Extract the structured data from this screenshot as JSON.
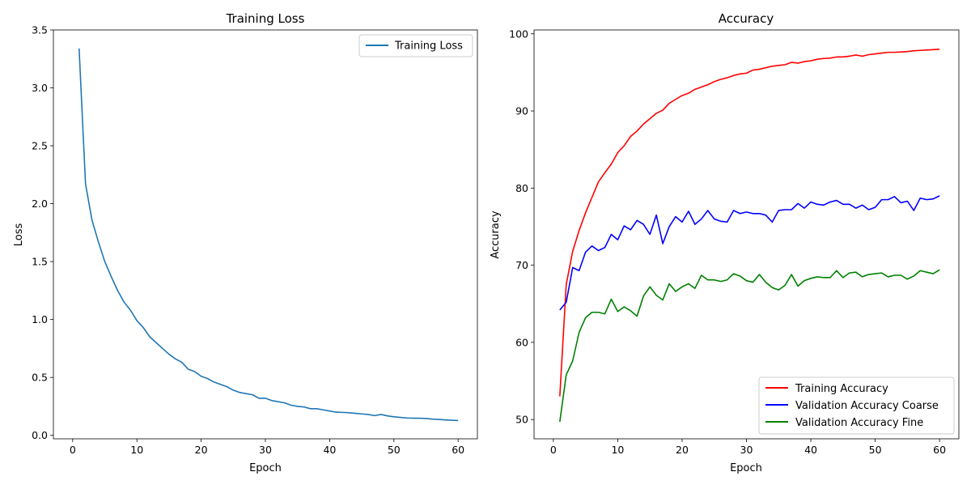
{
  "chart_data": [
    {
      "type": "line",
      "title": "Training Loss",
      "xlabel": "Epoch",
      "ylabel": "Loss",
      "xlim": [
        -3,
        63
      ],
      "ylim": [
        -0.03,
        3.5
      ],
      "xticks": [
        0,
        10,
        20,
        30,
        40,
        50,
        60
      ],
      "yticks": [
        0.0,
        0.5,
        1.0,
        1.5,
        2.0,
        2.5,
        3.0,
        3.5
      ],
      "ytick_decimals": 1,
      "grid": false,
      "legend_position": "upper right",
      "x": [
        1,
        2,
        3,
        4,
        5,
        6,
        7,
        8,
        9,
        10,
        11,
        12,
        13,
        14,
        15,
        16,
        17,
        18,
        19,
        20,
        21,
        22,
        23,
        24,
        25,
        26,
        27,
        28,
        29,
        30,
        31,
        32,
        33,
        34,
        35,
        36,
        37,
        38,
        39,
        40,
        41,
        42,
        43,
        44,
        45,
        46,
        47,
        48,
        49,
        50,
        51,
        52,
        53,
        54,
        55,
        56,
        57,
        58,
        59,
        60
      ],
      "series": [
        {
          "name": "Training Loss",
          "color": "#1f77b4",
          "values": [
            3.34,
            2.17,
            1.86,
            1.67,
            1.5,
            1.37,
            1.25,
            1.15,
            1.08,
            0.99,
            0.93,
            0.85,
            0.8,
            0.75,
            0.7,
            0.66,
            0.63,
            0.57,
            0.55,
            0.51,
            0.49,
            0.46,
            0.44,
            0.42,
            0.39,
            0.37,
            0.36,
            0.35,
            0.32,
            0.32,
            0.3,
            0.29,
            0.28,
            0.26,
            0.25,
            0.245,
            0.23,
            0.23,
            0.22,
            0.21,
            0.2,
            0.198,
            0.195,
            0.19,
            0.185,
            0.18,
            0.17,
            0.18,
            0.168,
            0.16,
            0.155,
            0.15,
            0.148,
            0.148,
            0.145,
            0.14,
            0.137,
            0.133,
            0.13,
            0.128
          ]
        }
      ]
    },
    {
      "type": "line",
      "title": "Accuracy",
      "xlabel": "Epoch",
      "ylabel": "Accuracy",
      "xlim": [
        -3,
        63
      ],
      "ylim": [
        47.5,
        100.5
      ],
      "xticks": [
        0,
        10,
        20,
        30,
        40,
        50,
        60
      ],
      "yticks": [
        50,
        60,
        70,
        80,
        90,
        100
      ],
      "ytick_decimals": 0,
      "grid": false,
      "legend_position": "lower right",
      "x": [
        1,
        2,
        3,
        4,
        5,
        6,
        7,
        8,
        9,
        10,
        11,
        12,
        13,
        14,
        15,
        16,
        17,
        18,
        19,
        20,
        21,
        22,
        23,
        24,
        25,
        26,
        27,
        28,
        29,
        30,
        31,
        32,
        33,
        34,
        35,
        36,
        37,
        38,
        39,
        40,
        41,
        42,
        43,
        44,
        45,
        46,
        47,
        48,
        49,
        50,
        51,
        52,
        53,
        54,
        55,
        56,
        57,
        58,
        59,
        60
      ],
      "series": [
        {
          "name": "Training Accuracy",
          "color": "#ff0000",
          "values": [
            53.0,
            67.5,
            71.8,
            74.5,
            76.8,
            78.8,
            80.8,
            82.0,
            83.1,
            84.6,
            85.5,
            86.7,
            87.4,
            88.3,
            89.0,
            89.7,
            90.1,
            91.0,
            91.5,
            92.0,
            92.3,
            92.8,
            93.1,
            93.4,
            93.8,
            94.1,
            94.3,
            94.6,
            94.8,
            94.9,
            95.3,
            95.4,
            95.6,
            95.8,
            95.9,
            96.0,
            96.3,
            96.2,
            96.4,
            96.5,
            96.7,
            96.8,
            96.85,
            97.0,
            97.0,
            97.1,
            97.25,
            97.1,
            97.3,
            97.4,
            97.5,
            97.6,
            97.6,
            97.65,
            97.7,
            97.8,
            97.85,
            97.9,
            97.95,
            98.0
          ]
        },
        {
          "name": "Validation Accuracy Coarse",
          "color": "#0000ff",
          "values": [
            64.2,
            65.2,
            69.7,
            69.3,
            71.7,
            72.5,
            71.9,
            72.3,
            74.0,
            73.3,
            75.1,
            74.6,
            75.8,
            75.3,
            74.0,
            76.5,
            72.8,
            75.0,
            76.3,
            75.6,
            77.0,
            75.3,
            76.0,
            77.1,
            76.0,
            75.7,
            75.6,
            77.1,
            76.7,
            76.9,
            76.7,
            76.7,
            76.5,
            75.6,
            77.1,
            77.2,
            77.2,
            78.0,
            77.4,
            78.2,
            77.9,
            77.8,
            78.2,
            78.4,
            77.9,
            77.9,
            77.4,
            77.8,
            77.2,
            77.5,
            78.5,
            78.5,
            78.9,
            78.1,
            78.3,
            77.1,
            78.7,
            78.5,
            78.6,
            79.0
          ]
        },
        {
          "name": "Validation Accuracy Fine",
          "color": "#008000",
          "values": [
            49.7,
            55.8,
            57.6,
            61.3,
            63.2,
            63.9,
            63.9,
            63.7,
            65.6,
            64.0,
            64.6,
            64.1,
            63.4,
            66.0,
            67.2,
            66.1,
            65.5,
            67.6,
            66.6,
            67.2,
            67.6,
            67.0,
            68.7,
            68.1,
            68.1,
            67.9,
            68.1,
            68.9,
            68.6,
            68.0,
            67.8,
            68.8,
            67.8,
            67.1,
            66.8,
            67.4,
            68.8,
            67.3,
            68.0,
            68.3,
            68.5,
            68.4,
            68.4,
            69.3,
            68.4,
            69.0,
            69.1,
            68.5,
            68.8,
            68.9,
            69.0,
            68.5,
            68.7,
            68.7,
            68.2,
            68.6,
            69.3,
            69.1,
            68.9,
            69.4
          ]
        }
      ]
    }
  ]
}
